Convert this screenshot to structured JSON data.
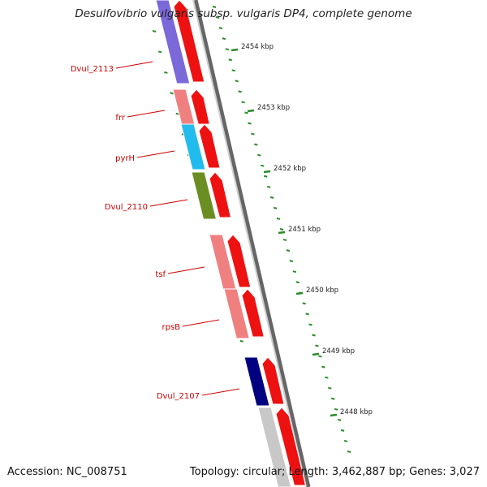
{
  "title": "Desulfovibrio vulgaris subsp. vulgaris DP4, complete genome",
  "footer": {
    "accession": "Accession: NC_008751",
    "summary": "Topology: circular; Length: 3,462,887 bp; Genes: 3,027"
  },
  "colors": {
    "cds_forward": "#ee1111",
    "tick": "#2a8a2a",
    "backbone": "#999999",
    "label": "#cc0000"
  },
  "ticks": [
    "2454 kbp",
    "2453 kbp",
    "2452 kbp",
    "2451 kbp",
    "2450 kbp",
    "2449 kbp",
    "2448 kbp"
  ],
  "genes": [
    {
      "label": "Dvul_2113",
      "color": "#7b68d9"
    },
    {
      "label": "frr",
      "color": "#f08080"
    },
    {
      "label": "pyrH",
      "color": "#22bbee"
    },
    {
      "label": "Dvul_2110",
      "color": "#6b8e23"
    },
    {
      "label": "tsf",
      "color": "#f08080"
    },
    {
      "label": "rpsB",
      "color": "#f08080"
    },
    {
      "label": "Dvul_2107",
      "color": "#000080"
    },
    {
      "label": "",
      "color": "#c8c8c8"
    }
  ]
}
